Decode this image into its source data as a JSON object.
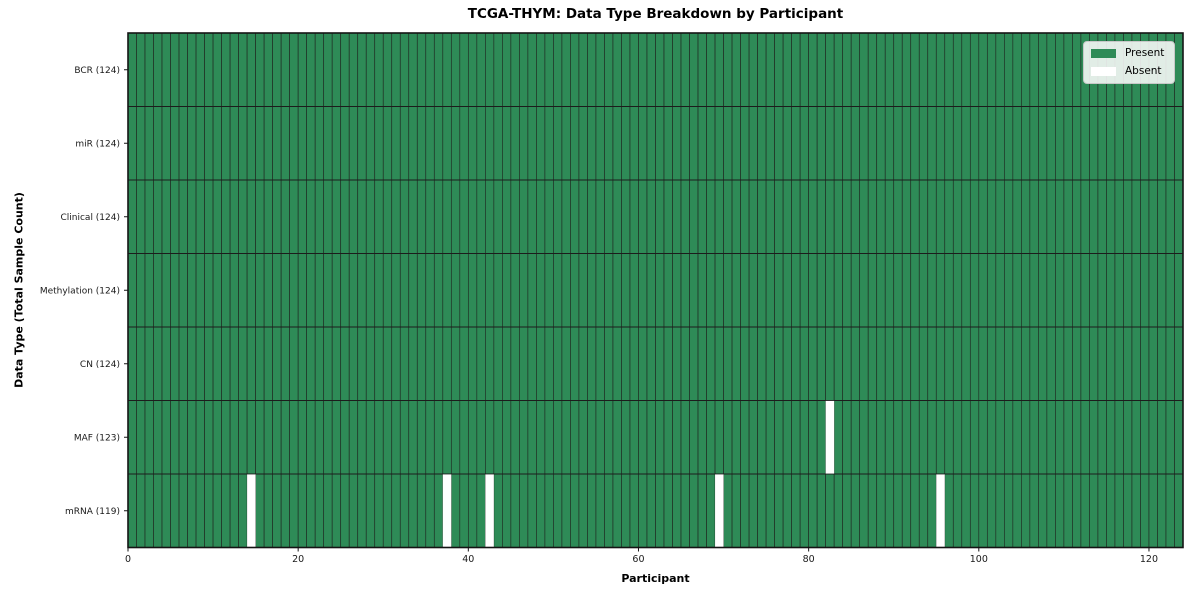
{
  "chart_data": {
    "type": "heatmap",
    "title": "TCGA-THYM: Data Type Breakdown by Participant",
    "xlabel": "Participant",
    "ylabel": "Data Type (Total Sample Count)",
    "n_participants": 124,
    "x_range": [
      0,
      124
    ],
    "x_ticks": [
      0,
      20,
      40,
      60,
      80,
      100,
      120
    ],
    "grid": false,
    "legend_position": "upper right",
    "rows": [
      {
        "label": "BCR (124)",
        "data_type": "BCR",
        "present_count": 124,
        "absent_participants": []
      },
      {
        "label": "miR (124)",
        "data_type": "miR",
        "present_count": 124,
        "absent_participants": []
      },
      {
        "label": "Clinical (124)",
        "data_type": "Clinical",
        "present_count": 124,
        "absent_participants": []
      },
      {
        "label": "Methylation (124)",
        "data_type": "Methylation",
        "present_count": 124,
        "absent_participants": []
      },
      {
        "label": "CN (124)",
        "data_type": "CN",
        "present_count": 124,
        "absent_participants": []
      },
      {
        "label": "MAF (123)",
        "data_type": "MAF",
        "present_count": 123,
        "absent_participants": [
          82
        ]
      },
      {
        "label": "mRNA (119)",
        "data_type": "mRNA",
        "present_count": 119,
        "absent_participants": [
          14,
          37,
          42,
          69,
          95
        ]
      }
    ],
    "legend": [
      {
        "label": "Present",
        "color": "#2e8b57"
      },
      {
        "label": "Absent",
        "color": "#ffffff"
      }
    ],
    "colors": {
      "present": "#2e8b57",
      "absent": "#ffffff",
      "cell_edge": "#1f2a22",
      "row_line": "#1c1c1c",
      "spine": "#141414",
      "tick_text": "#1a1a1a",
      "figure_bg": "#ffffff"
    }
  }
}
